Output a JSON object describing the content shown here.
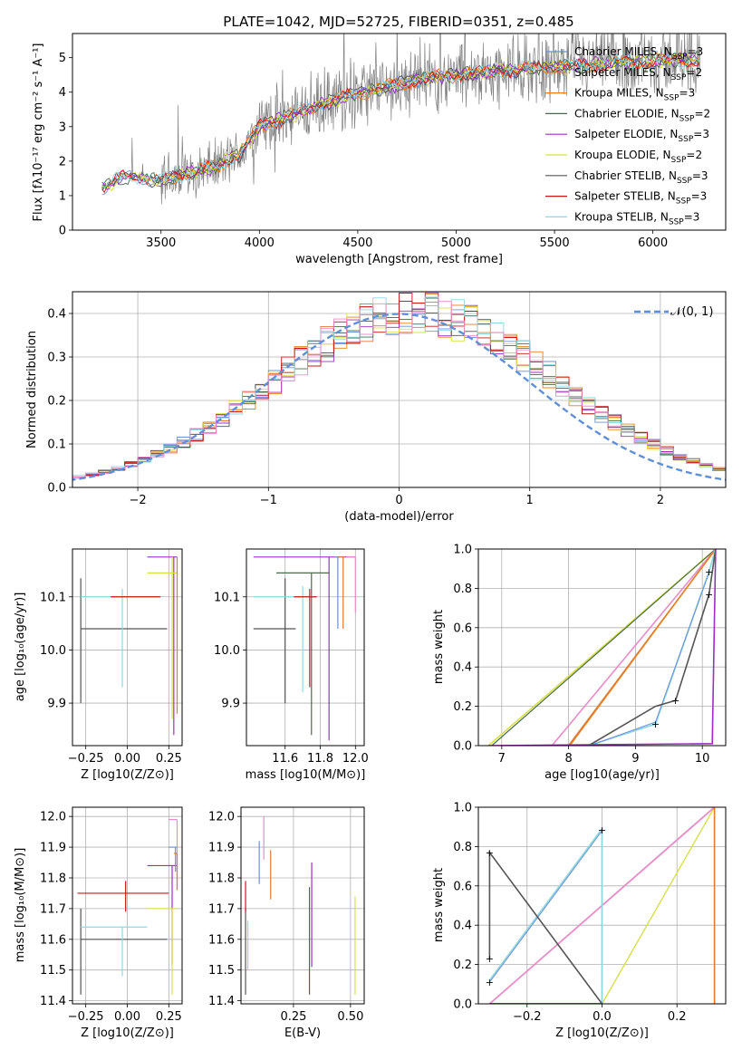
{
  "figure": {
    "title": "PLATE=1042, MJD=52725, FIBERID=0351, z=0.485"
  },
  "colors": {
    "Chabrier MILES": "#6f8fd8",
    "Salpeter MILES": "#e07a39",
    "Kroupa MILES": "#e8821c",
    "Chabrier ELODIE": "#4a6b4a",
    "Salpeter ELODIE": "#9b30c0",
    "Kroupa ELODIE": "#d8e048",
    "Chabrier STELIB": "#555555",
    "Salpeter STELIB": "#c81818",
    "Kroupa STELIB": "#8fd8e0",
    "pink": "#e88cc8",
    "observed": "#808080",
    "normal": "#5f8fd8",
    "grid": "#b0b0b0"
  },
  "chart_data": [
    {
      "type": "line",
      "xlabel": "wavelength [Angstrom, rest frame]",
      "ylabel": "Flux [f_λ 10^-17 erg cm^-2 s^-1 A^-1]",
      "xlim": [
        3050,
        6370
      ],
      "ylim": [
        0,
        5.7
      ],
      "xticks": [
        3500,
        4000,
        4500,
        5000,
        5500,
        6000
      ],
      "yticks": [
        0,
        1,
        2,
        3,
        4,
        5
      ],
      "grid": false,
      "legend_position": "right",
      "series": [
        {
          "name": "Chabrier MILES",
          "nssp": "3"
        },
        {
          "name": "Salpeter MILES",
          "nssp": "2"
        },
        {
          "name": "Kroupa MILES",
          "nssp": "3"
        },
        {
          "name": "Chabrier ELODIE",
          "nssp": "2"
        },
        {
          "name": "Salpeter ELODIE",
          "nssp": "3"
        },
        {
          "name": "Kroupa ELODIE",
          "nssp": "2"
        },
        {
          "name": "Chabrier STELIB",
          "nssp": "3"
        },
        {
          "name": "Salpeter STELIB",
          "nssp": "3"
        },
        {
          "name": "Kroupa STELIB",
          "nssp": "3"
        }
      ],
      "continuum": [
        [
          3200,
          1.2
        ],
        [
          3300,
          1.55
        ],
        [
          3400,
          1.5
        ],
        [
          3500,
          1.45
        ],
        [
          3600,
          1.6
        ],
        [
          3700,
          1.75
        ],
        [
          3800,
          1.9
        ],
        [
          3900,
          2.2
        ],
        [
          4000,
          3.0
        ],
        [
          4200,
          3.4
        ],
        [
          4400,
          3.8
        ],
        [
          4600,
          4.1
        ],
        [
          4800,
          4.35
        ],
        [
          5000,
          4.5
        ],
        [
          5200,
          4.6
        ],
        [
          5400,
          4.7
        ],
        [
          5600,
          4.75
        ],
        [
          5800,
          4.85
        ],
        [
          6000,
          4.9
        ],
        [
          6200,
          4.95
        ]
      ]
    },
    {
      "type": "line",
      "xlabel": "(data-model)/error",
      "ylabel": "Normed distribution",
      "xlim": [
        -2.5,
        2.5
      ],
      "ylim": [
        0,
        0.45
      ],
      "xticks": [
        -2,
        -1,
        0,
        1,
        2
      ],
      "yticks": [
        0.0,
        0.1,
        0.2,
        0.3,
        0.4
      ],
      "grid": true,
      "legend_position": "top-right",
      "legend_label": "𝒩(0, 1)"
    },
    {
      "type": "scatter",
      "xlabel": "Z [log10(Z/Z⊙)]",
      "ylabel": "age  [log10(age/yr)]",
      "xlim": [
        -0.33,
        0.33
      ],
      "ylim": [
        9.82,
        10.19
      ],
      "xticks": [
        -0.25,
        0.0,
        0.25
      ],
      "yticks": [
        9.9,
        10.0,
        10.1
      ],
      "grid": true
    },
    {
      "type": "scatter",
      "xlabel": "mass [log10(M/M⊙)]",
      "ylabel": "",
      "xlim": [
        11.38,
        12.05
      ],
      "ylim": [
        9.82,
        10.19
      ],
      "xticks": [
        11.6,
        11.8,
        12.0
      ],
      "yticks": [
        9.9,
        10.0,
        10.1
      ],
      "grid": true
    },
    {
      "type": "line",
      "xlabel": "age  [log10(age/yr)]",
      "ylabel": "mass weight",
      "xlim": [
        6.65,
        10.35
      ],
      "ylim": [
        0,
        1.0
      ],
      "xticks": [
        7,
        8,
        9,
        10
      ],
      "yticks": [
        0.0,
        0.2,
        0.4,
        0.6,
        0.8,
        1.0
      ],
      "grid": true
    },
    {
      "type": "scatter",
      "xlabel": "Z [log10(Z/Z⊙)]",
      "ylabel": "mass [log10(M/M⊙)]",
      "xlim": [
        -0.33,
        0.33
      ],
      "ylim": [
        11.39,
        12.03
      ],
      "xticks": [
        -0.25,
        0.0,
        0.25
      ],
      "yticks": [
        11.4,
        11.5,
        11.6,
        11.7,
        11.8,
        11.9,
        12.0
      ],
      "grid": true
    },
    {
      "type": "scatter",
      "xlabel": "E(B-V)",
      "ylabel": "",
      "xlim": [
        0.02,
        0.56
      ],
      "ylim": [
        11.39,
        12.03
      ],
      "xticks": [
        0.25,
        0.5
      ],
      "yticks": [
        11.4,
        11.5,
        11.6,
        11.7,
        11.8,
        11.9,
        12.0
      ],
      "grid": true
    },
    {
      "type": "line",
      "xlabel": "Z [log10(Z/Z⊙)]",
      "ylabel": "mass weight",
      "xlim": [
        -0.33,
        0.33
      ],
      "ylim": [
        0,
        1.0
      ],
      "xticks": [
        -0.2,
        0.0,
        0.2
      ],
      "yticks": [
        0.0,
        0.2,
        0.4,
        0.6,
        0.8,
        1.0
      ],
      "grid": true
    }
  ]
}
